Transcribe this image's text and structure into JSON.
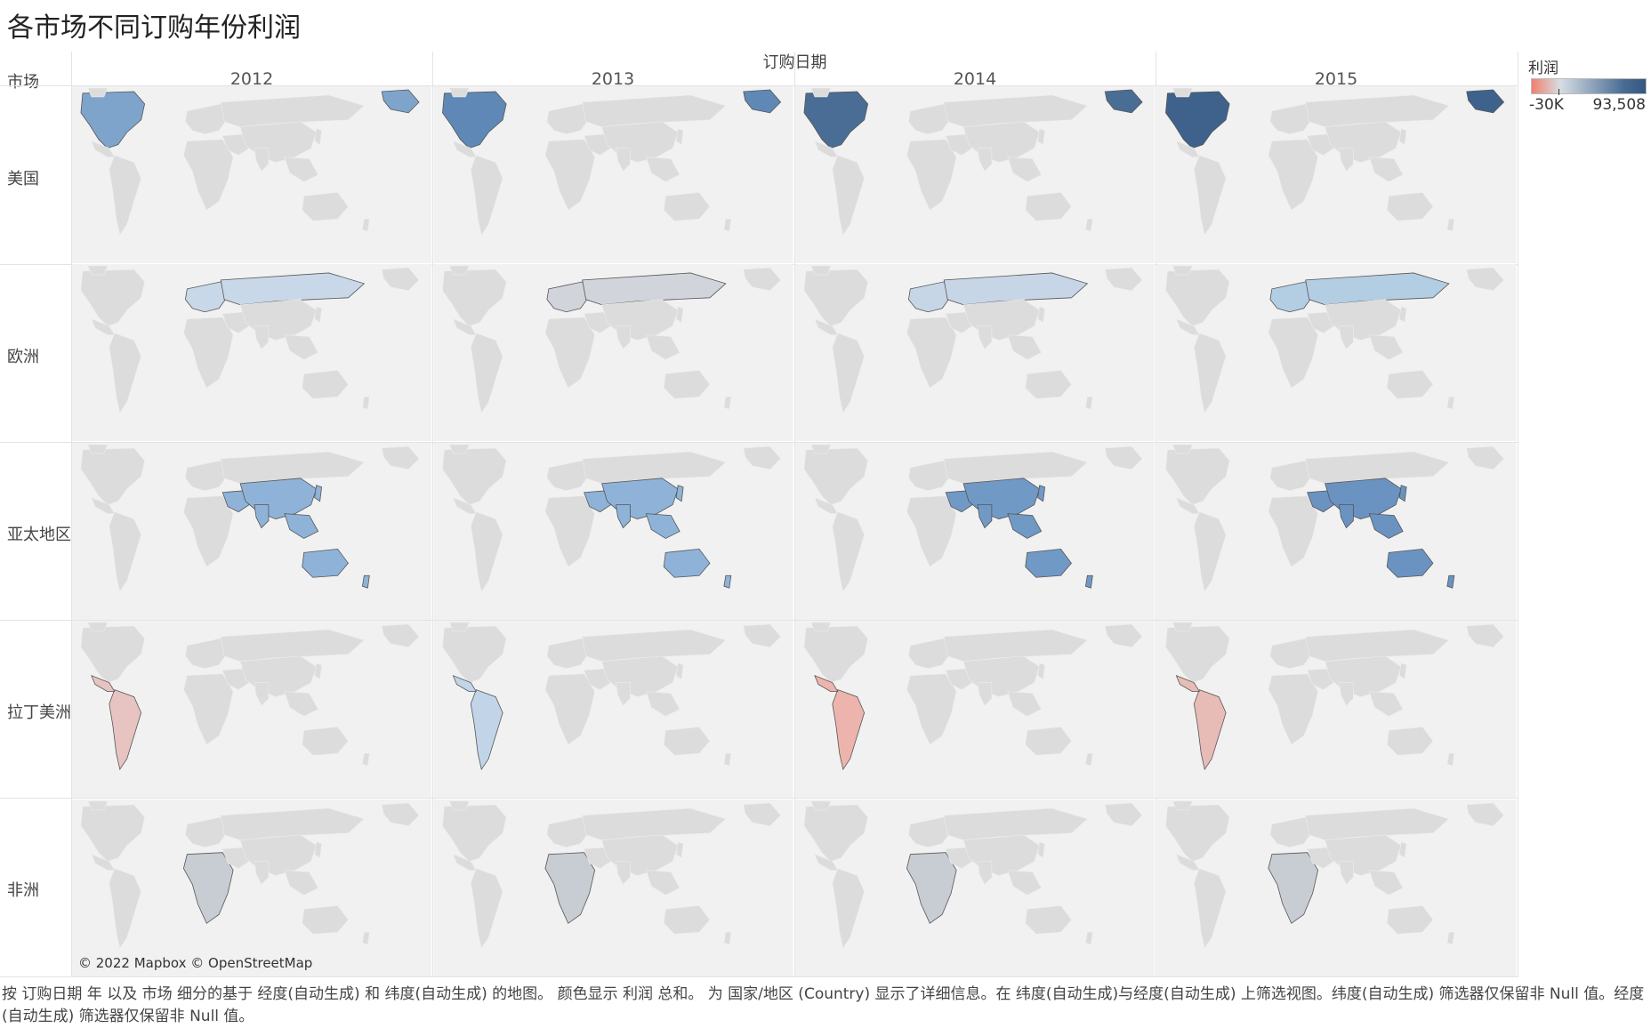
{
  "title": "各市场不同订购年份利润",
  "column_header": "订购日期",
  "row_header": "市场",
  "years": [
    "2012",
    "2013",
    "2014",
    "2015"
  ],
  "markets": [
    "美国",
    "欧洲",
    "亚太地区",
    "拉丁美洲",
    "非洲"
  ],
  "legend": {
    "title": "利润",
    "min_label": "-30K",
    "max_label": "93,508",
    "colors": {
      "negative": "#f0806e",
      "neutral": "#d6dde4",
      "positive": "#4a6d95",
      "dark": "#33577f"
    }
  },
  "attribution": "© 2022 Mapbox © OpenStreetMap",
  "footnote": "按 订购日期 年 以及 市场 细分的基于 经度(自动生成) 和 纬度(自动生成) 的地图。 颜色显示 利润 总和。 为 国家/地区 (Country) 显示了详细信息。在 纬度(自动生成)与经度(自动生成) 上筛选视图。纬度(自动生成) 筛选器仅保留非 Null 值。经度(自动生成) 筛选器仅保留非 Null 值。",
  "map_colors": {
    "base_land": "#dcdcdc",
    "ocean": "#f1f1f1",
    "grid_cells": {
      "美国": {
        "2012": "#7fa4cb",
        "2013": "#5f88b6",
        "2014": "#4a6d95",
        "2015": "#3f628c"
      },
      "欧洲": {
        "2012": "#c9d8e8",
        "2013": "#d1d5db",
        "2014": "#c7d6e6",
        "2015": "#b3cde3"
      },
      "亚太地区": {
        "2012": "#8fb3d8",
        "2013": "#8fb3d8",
        "2014": "#7099c6",
        "2015": "#6a93c2"
      },
      "拉丁美洲": {
        "2012": "#e7c4c1",
        "2013": "#c2d5e8",
        "2014": "#edb4ad",
        "2015": "#e7bcb6"
      },
      "非洲": {
        "2012": "#c8ccd3",
        "2013": "#c8ccd3",
        "2014": "#c8ccd3",
        "2015": "#c8ccd3"
      }
    }
  }
}
